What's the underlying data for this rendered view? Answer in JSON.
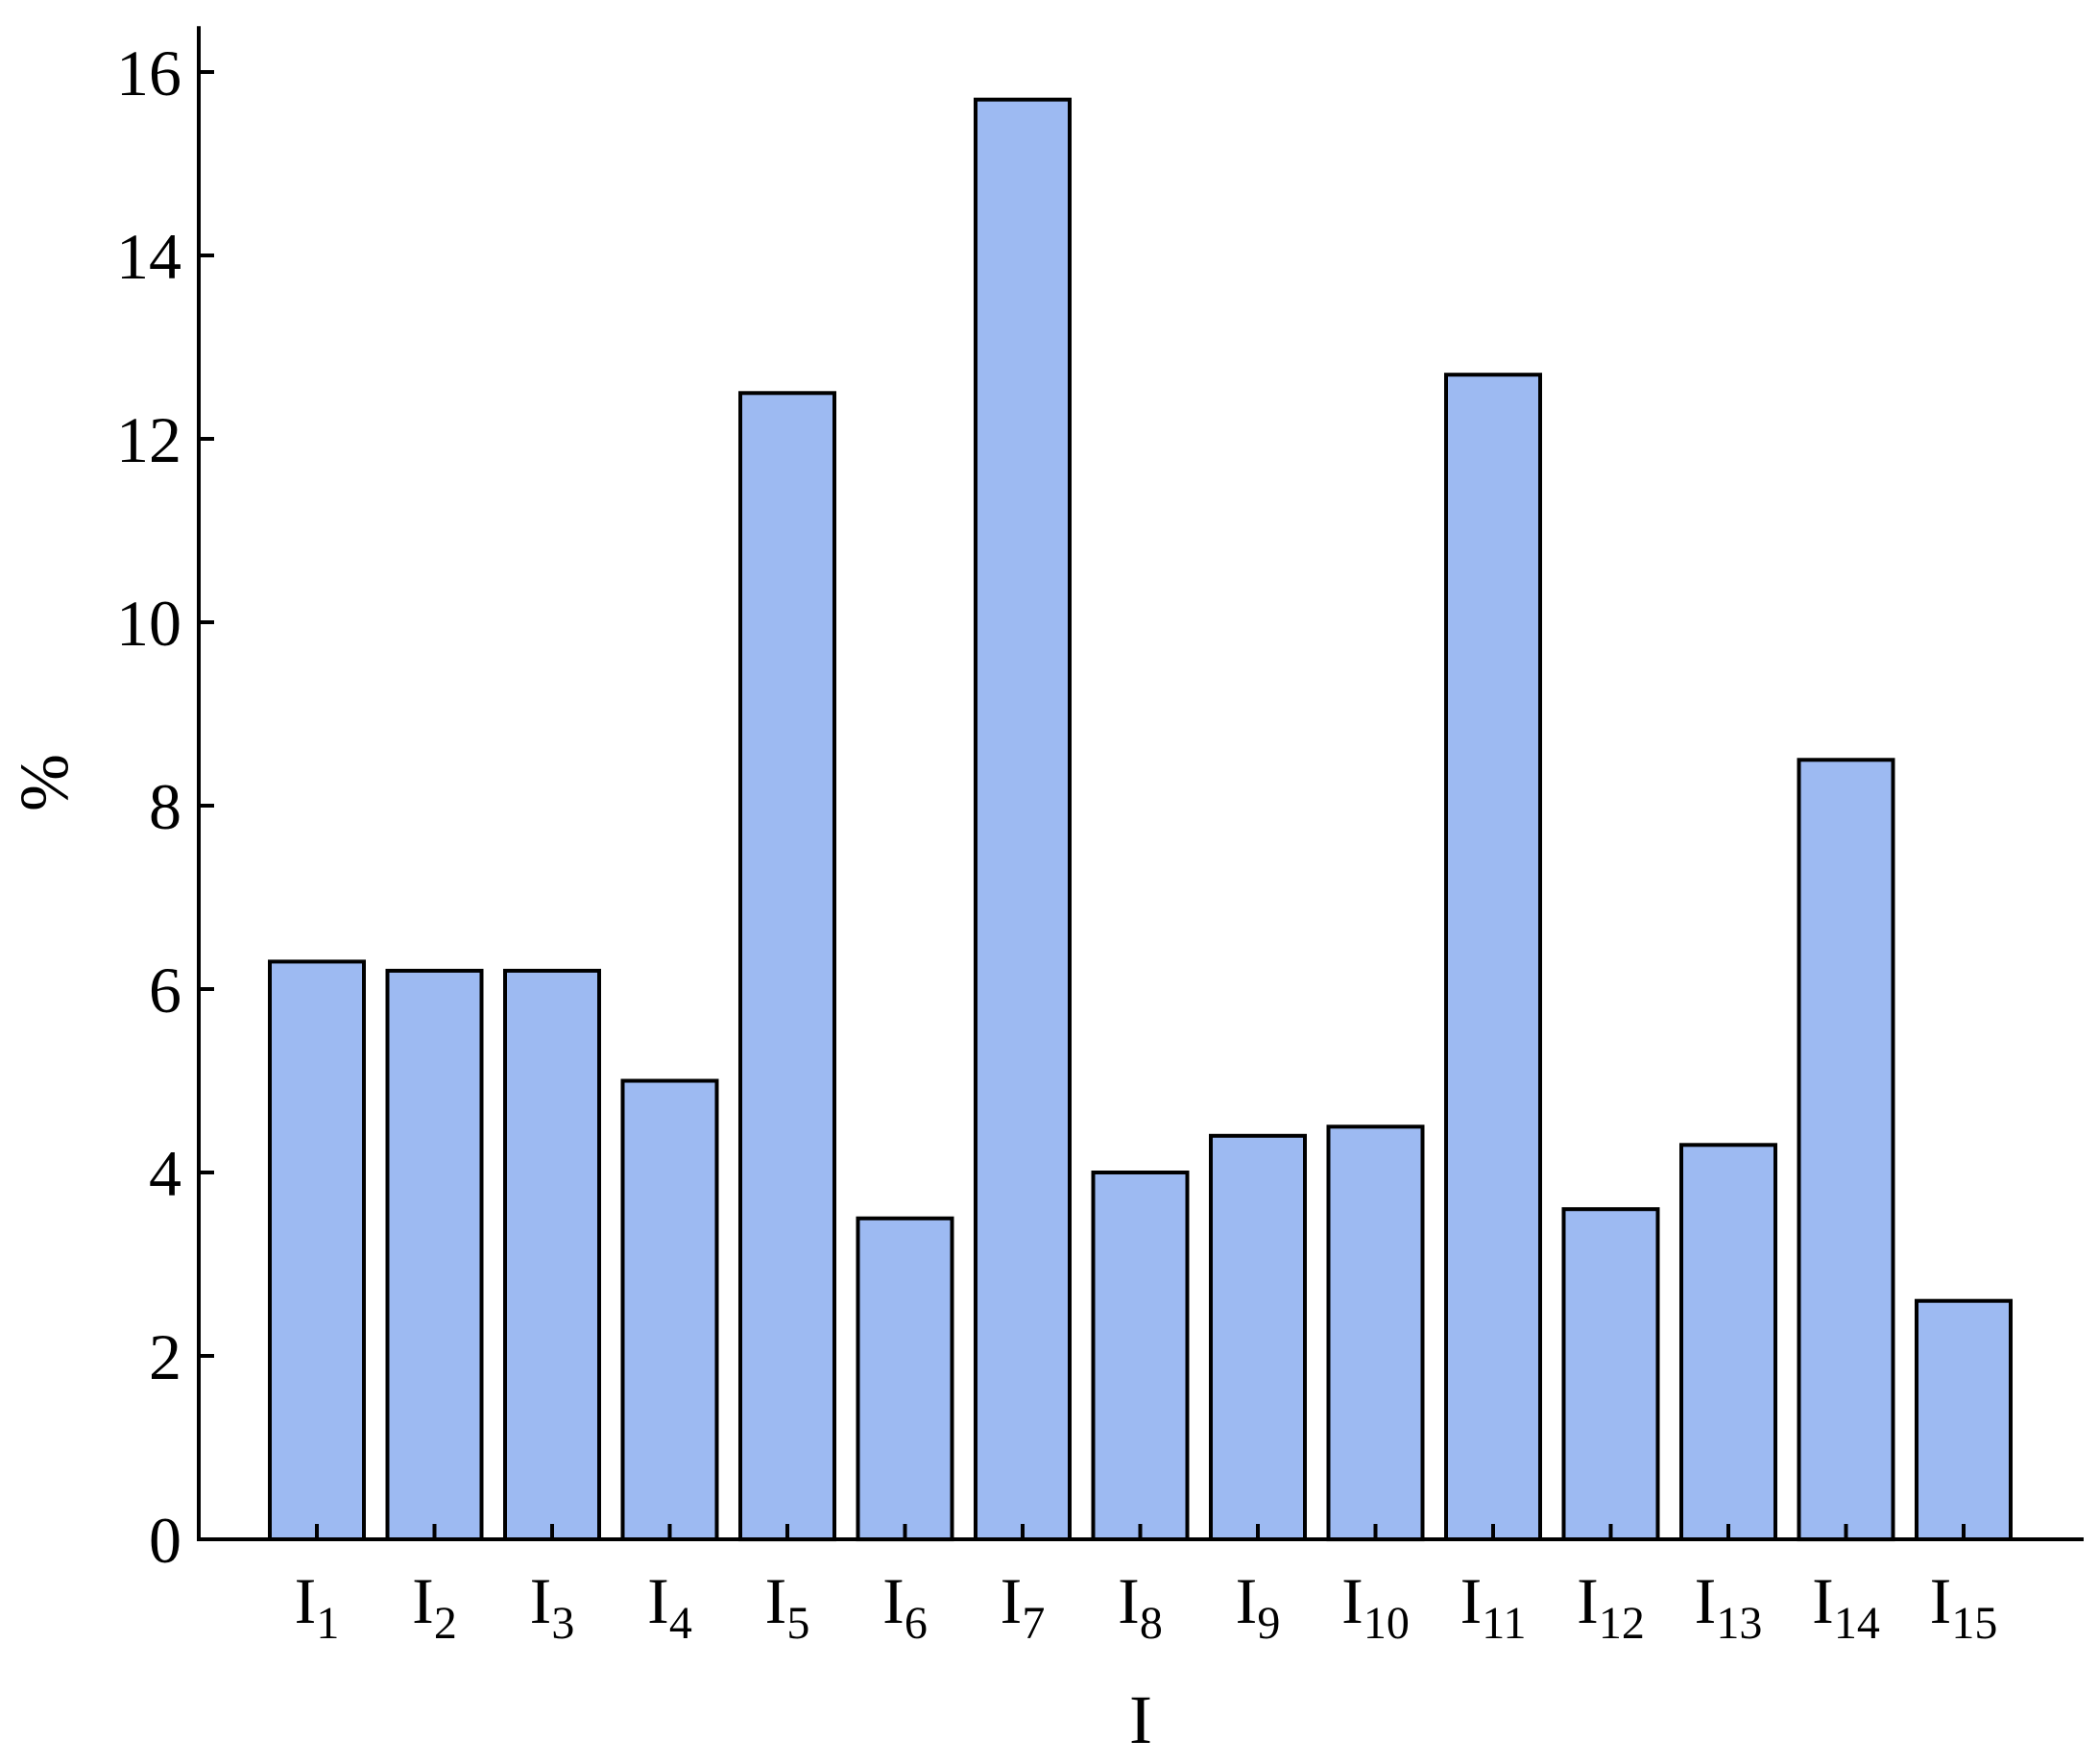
{
  "chart_data": {
    "type": "bar",
    "categories": [
      {
        "main": "I",
        "sub": "1"
      },
      {
        "main": "I",
        "sub": "2"
      },
      {
        "main": "I",
        "sub": "3"
      },
      {
        "main": "I",
        "sub": "4"
      },
      {
        "main": "I",
        "sub": "5"
      },
      {
        "main": "I",
        "sub": "6"
      },
      {
        "main": "I",
        "sub": "7"
      },
      {
        "main": "I",
        "sub": "8"
      },
      {
        "main": "I",
        "sub": "9"
      },
      {
        "main": "I",
        "sub": "10"
      },
      {
        "main": "I",
        "sub": "11"
      },
      {
        "main": "I",
        "sub": "12"
      },
      {
        "main": "I",
        "sub": "13"
      },
      {
        "main": "I",
        "sub": "14"
      },
      {
        "main": "I",
        "sub": "15"
      }
    ],
    "values": [
      6.3,
      6.2,
      6.2,
      5.0,
      12.5,
      3.5,
      15.7,
      4.0,
      4.4,
      4.5,
      12.7,
      3.6,
      4.3,
      8.5,
      2.6
    ],
    "xlabel": "I",
    "ylabel": "%",
    "ylim": [
      0,
      16.5
    ],
    "yticks": [
      0,
      2,
      4,
      6,
      8,
      10,
      12,
      14,
      16
    ],
    "grid": false,
    "legend": "none",
    "colors": {
      "bar_fill": "#9dbaf2",
      "bar_stroke": "#000000",
      "axis": "#000000"
    }
  }
}
